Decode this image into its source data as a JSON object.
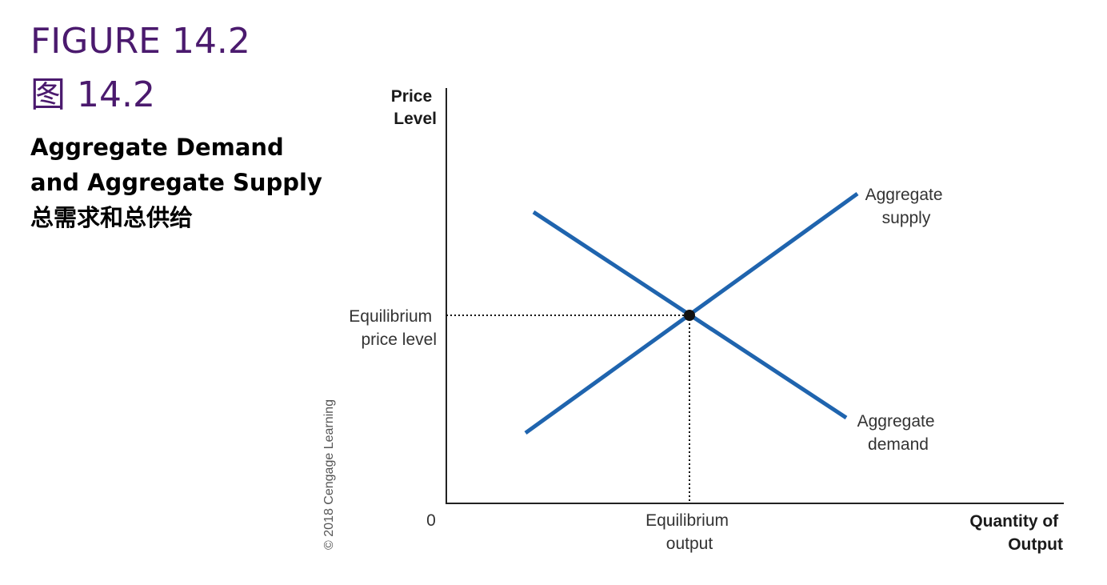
{
  "figure": {
    "number_en": "FIGURE 14.2",
    "number_zh": "图 14.2",
    "title_line1": "Aggregate Demand",
    "title_line2": "and Aggregate Supply",
    "title_zh": "总需求和总供给"
  },
  "diagram": {
    "y_axis_label": [
      "Price",
      "Level"
    ],
    "x_axis_label": [
      "Quantity of",
      "Output"
    ],
    "origin_label": "0",
    "equilibrium_price_label": [
      "Equilibrium",
      "price level"
    ],
    "equilibrium_output_label": [
      "Equilibrium",
      "output"
    ],
    "supply_label": [
      "Aggregate",
      "supply"
    ],
    "demand_label": [
      "Aggregate",
      "demand"
    ],
    "copyright": "© 2018 Cengage Learning",
    "curve_color": "#1f64ae",
    "title_color": "#4b1a6e"
  }
}
